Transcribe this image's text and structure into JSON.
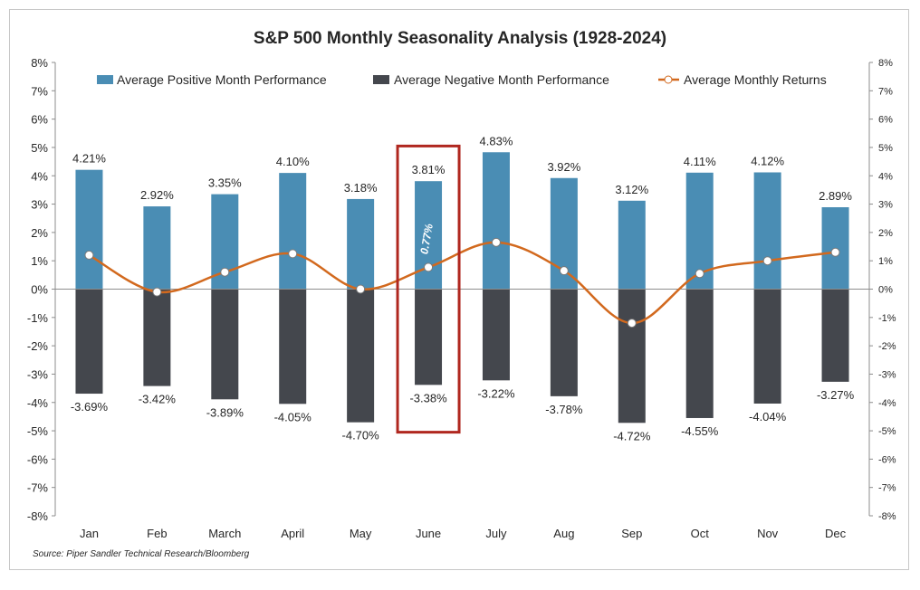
{
  "chart_data": {
    "type": "bar",
    "title": "S&P 500 Monthly Seasonality Analysis (1928-2024)",
    "categories": [
      "Jan",
      "Feb",
      "March",
      "April",
      "May",
      "June",
      "July",
      "Aug",
      "Sep",
      "Oct",
      "Nov",
      "Dec"
    ],
    "series": [
      {
        "name": "Average Positive Month Performance",
        "kind": "bar",
        "color": "#4a8db4",
        "values": [
          4.21,
          2.92,
          3.35,
          4.1,
          3.18,
          3.81,
          4.83,
          3.92,
          3.12,
          4.11,
          4.12,
          2.89
        ],
        "labels": [
          "4.21%",
          "2.92%",
          "3.35%",
          "4.10%",
          "3.18%",
          "3.81%",
          "4.83%",
          "3.92%",
          "3.12%",
          "4.11%",
          "4.12%",
          "2.89%"
        ]
      },
      {
        "name": "Average Negative Month Performance",
        "kind": "bar",
        "color": "#44474d",
        "values": [
          -3.69,
          -3.42,
          -3.89,
          -4.05,
          -4.7,
          -3.38,
          -3.22,
          -3.78,
          -4.72,
          -4.55,
          -4.04,
          -3.27
        ],
        "labels": [
          "-3.69%",
          "-3.42%",
          "-3.89%",
          "-4.05%",
          "-4.70%",
          "-3.38%",
          "-3.22%",
          "-3.78%",
          "-4.72%",
          "-4.55%",
          "-4.04%",
          "-3.27%"
        ]
      },
      {
        "name": "Average Monthly Returns",
        "kind": "line",
        "color": "#d2691e",
        "values": [
          1.2,
          -0.1,
          0.6,
          1.25,
          0.0,
          0.77,
          1.65,
          0.65,
          -1.2,
          0.55,
          1.0,
          1.3
        ]
      }
    ],
    "ylim": [
      -8,
      8
    ],
    "yticks": [
      "8%",
      "7%",
      "6%",
      "5%",
      "4%",
      "3%",
      "2%",
      "1%",
      "0%",
      "-1%",
      "-2%",
      "-3%",
      "-4%",
      "-5%",
      "-6%",
      "-7%",
      "-8%"
    ],
    "secondary_ylim": [
      -8,
      8
    ],
    "grid": false,
    "legend_position": "top",
    "highlight": {
      "category": "June",
      "color": "#b0271f",
      "label": "0.77%"
    },
    "source": "Source: Piper Sandler Technical Research/Bloomberg"
  }
}
